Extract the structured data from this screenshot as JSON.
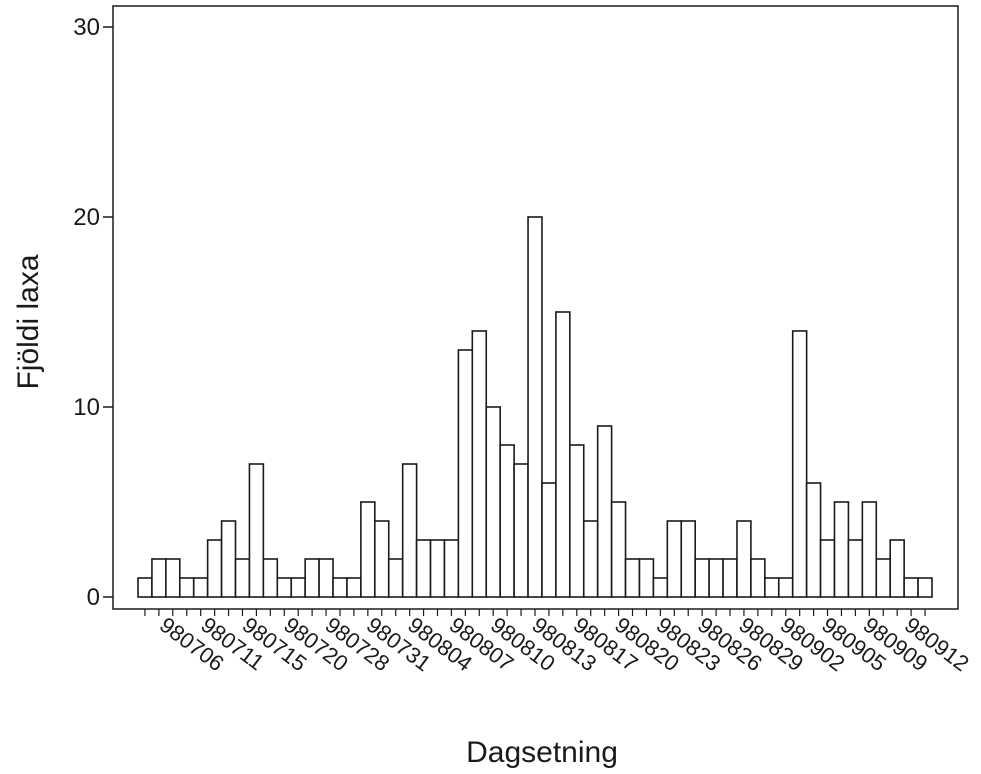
{
  "chart_data": {
    "type": "bar",
    "title": "",
    "xlabel": "Dagsetning",
    "ylabel": "Fjöldi laxa",
    "ylim": [
      0,
      30
    ],
    "yticks": [
      "0",
      "10",
      "20",
      "30"
    ],
    "xtick_labels": [
      "980706",
      "980711",
      "980715",
      "980720",
      "980728",
      "980731",
      "980804",
      "980807",
      "980810",
      "980813",
      "980817",
      "980820",
      "980823",
      "980826",
      "980829",
      "980902",
      "980905",
      "980909",
      "980912"
    ],
    "grid": false,
    "legend": "none",
    "values": [
      1,
      2,
      2,
      1,
      1,
      3,
      4,
      2,
      7,
      2,
      1,
      1,
      2,
      2,
      1,
      1,
      5,
      4,
      2,
      7,
      3,
      3,
      3,
      13,
      14,
      10,
      8,
      7,
      20,
      6,
      15,
      8,
      4,
      9,
      5,
      2,
      2,
      1,
      4,
      4,
      2,
      2,
      2,
      4,
      2,
      1,
      1,
      14,
      6,
      3,
      5,
      3,
      5,
      2,
      3,
      1,
      1
    ],
    "colors": {
      "bar_fill": "#ffffff",
      "bar_stroke": "#1a1a1a",
      "background": "#ffffff"
    }
  }
}
